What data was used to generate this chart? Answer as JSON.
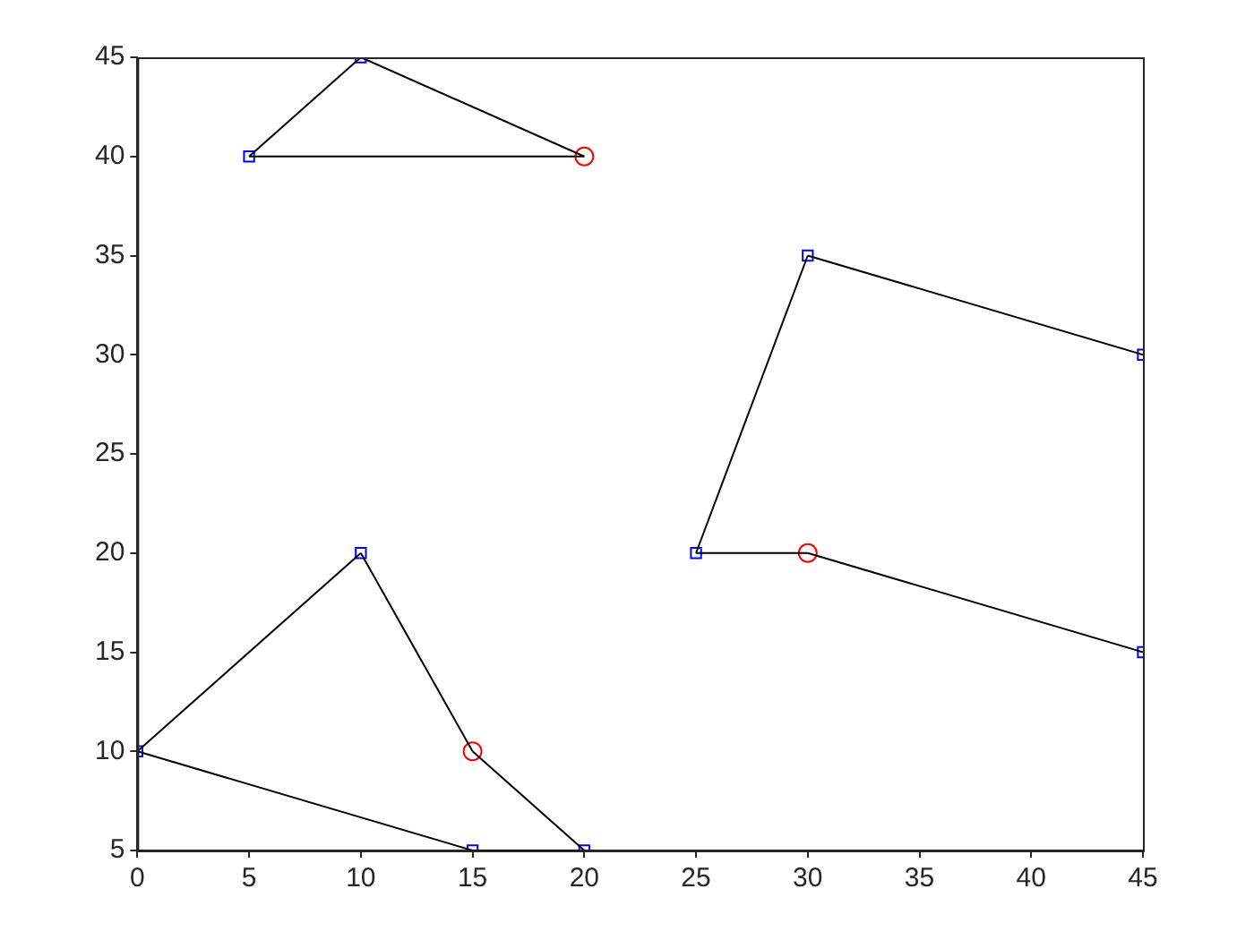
{
  "chart_data": {
    "type": "line",
    "xlim": [
      0,
      45
    ],
    "xticks": [
      0,
      5,
      10,
      15,
      20,
      25,
      30,
      35,
      40,
      45
    ],
    "ylim": [
      5,
      45
    ],
    "yticks": [
      5,
      10,
      15,
      20,
      25,
      30,
      35,
      40,
      45
    ],
    "grid": false,
    "legend": false,
    "series": [
      {
        "color": "#000000",
        "marker": "none",
        "x": [
          5,
          10
        ],
        "values": [
          40,
          45
        ]
      },
      {
        "color": "#000000",
        "marker": "none",
        "x": [
          10,
          20
        ],
        "values": [
          45,
          40
        ]
      },
      {
        "color": "#000000",
        "marker": "none",
        "x": [
          5,
          20
        ],
        "values": [
          40,
          40
        ]
      },
      {
        "color": "#000000",
        "marker": "none",
        "x": [
          15,
          20
        ],
        "values": [
          10,
          5
        ]
      },
      {
        "color": "#000000",
        "marker": "none",
        "x": [
          15,
          20
        ],
        "values": [
          5,
          5
        ]
      },
      {
        "color": "#000000",
        "marker": "none",
        "x": [
          0,
          15
        ],
        "values": [
          10,
          5
        ]
      },
      {
        "color": "#000000",
        "marker": "none",
        "x": [
          0,
          10
        ],
        "values": [
          10,
          20
        ]
      },
      {
        "color": "#000000",
        "marker": "none",
        "x": [
          10,
          15
        ],
        "values": [
          20,
          10
        ]
      },
      {
        "color": "#000000",
        "marker": "none",
        "x": [
          30,
          45
        ],
        "values": [
          20,
          15
        ]
      },
      {
        "color": "#000000",
        "marker": "none",
        "x": [
          25,
          30
        ],
        "values": [
          20,
          20
        ]
      },
      {
        "color": "#000000",
        "marker": "none",
        "x": [
          25,
          30
        ],
        "values": [
          20,
          35
        ]
      },
      {
        "color": "#000000",
        "marker": "none",
        "x": [
          30,
          45
        ],
        "values": [
          35,
          30
        ]
      },
      {
        "type": "scatter",
        "color": "#0000ff",
        "marker": "square",
        "x": [
          5,
          10,
          20,
          15,
          0,
          10,
          25,
          30,
          45,
          45
        ],
        "values": [
          40,
          45,
          5,
          5,
          10,
          20,
          20,
          35,
          30,
          15
        ]
      },
      {
        "type": "scatter",
        "color": "#ff0000",
        "marker": "circle",
        "x": [
          20,
          15,
          30
        ],
        "values": [
          40,
          10,
          20
        ]
      }
    ]
  }
}
